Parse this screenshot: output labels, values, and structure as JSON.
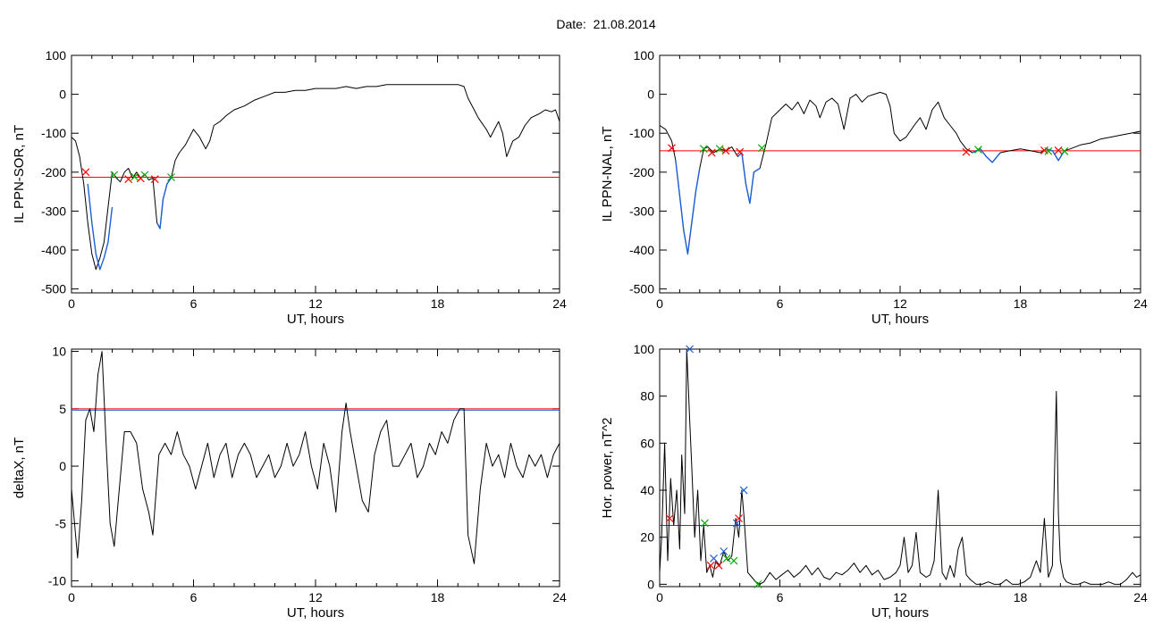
{
  "title": "Date:  21.08.2014",
  "chart_data": [
    {
      "id": "ppn-sor",
      "type": "line",
      "xlabel": "UT, hours",
      "ylabel": "IL PPN-SOR, nT",
      "xlim": [
        0,
        24
      ],
      "ylim": [
        -510,
        100
      ],
      "xticks": [
        0,
        6,
        12,
        18,
        24
      ],
      "yticks": [
        100,
        0,
        -100,
        -200,
        -300,
        -400,
        -500
      ],
      "threshold": -213,
      "threshold_color": "#ff0000",
      "series": [
        {
          "color": "#000000",
          "x": [
            0,
            0.2,
            0.4,
            0.6,
            0.8,
            1.0,
            1.2,
            1.4,
            1.6,
            1.8,
            2.0,
            2.2,
            2.4,
            2.6,
            2.8,
            3.0,
            3.2,
            3.4,
            3.6,
            3.8,
            4.0,
            4.2,
            4.35,
            4.5,
            4.7,
            4.9,
            5.1,
            5.3,
            5.6,
            6.0,
            6.3,
            6.6,
            6.8,
            7.0,
            7.3,
            7.6,
            8.0,
            8.5,
            9.0,
            9.5,
            10.0,
            10.5,
            11.0,
            11.5,
            12.0,
            12.5,
            13.0,
            13.5,
            14.0,
            14.5,
            15.0,
            15.5,
            16.0,
            16.5,
            17.0,
            17.5,
            18.0,
            18.5,
            19.0,
            19.3,
            19.5,
            19.8,
            20.0,
            20.2,
            20.4,
            20.6,
            20.8,
            21.0,
            21.2,
            21.4,
            21.7,
            22.0,
            22.3,
            22.6,
            23.0,
            23.3,
            23.6,
            23.8,
            24.0
          ],
          "y": [
            -110,
            -120,
            -160,
            -230,
            -330,
            -410,
            -450,
            -420,
            -380,
            -290,
            -200,
            -215,
            -225,
            -200,
            -190,
            -215,
            -200,
            -215,
            -205,
            -220,
            -215,
            -330,
            -345,
            -270,
            -230,
            -215,
            -170,
            -150,
            -130,
            -90,
            -110,
            -140,
            -120,
            -80,
            -70,
            -55,
            -40,
            -30,
            -15,
            -5,
            5,
            5,
            10,
            10,
            15,
            15,
            15,
            20,
            15,
            20,
            20,
            25,
            25,
            25,
            25,
            25,
            25,
            25,
            25,
            20,
            -10,
            -40,
            -60,
            -75,
            -90,
            -110,
            -90,
            -70,
            -100,
            -160,
            -120,
            -110,
            -80,
            -60,
            -50,
            -40,
            -45,
            -40,
            -70
          ]
        },
        {
          "color": "#1f5fd6",
          "x": [
            0.8,
            1.0,
            1.2,
            1.4,
            1.6,
            1.8,
            2.0
          ],
          "y": [
            -230,
            -330,
            -410,
            -450,
            -420,
            -380,
            -290
          ]
        },
        {
          "color": "#1f5fd6",
          "x": [
            4.2,
            4.35,
            4.5,
            4.7,
            4.9
          ],
          "y": [
            -330,
            -345,
            -270,
            -230,
            -215
          ]
        }
      ],
      "markers": [
        {
          "x": 0.7,
          "y": -200,
          "color": "#ff0000"
        },
        {
          "x": 2.1,
          "y": -207,
          "color": "#00b000"
        },
        {
          "x": 2.8,
          "y": -218,
          "color": "#ff0000"
        },
        {
          "x": 3.1,
          "y": -212,
          "color": "#00b000"
        },
        {
          "x": 3.4,
          "y": -216,
          "color": "#ff0000"
        },
        {
          "x": 3.6,
          "y": -207,
          "color": "#00b000"
        },
        {
          "x": 4.1,
          "y": -218,
          "color": "#ff0000"
        },
        {
          "x": 4.9,
          "y": -213,
          "color": "#00b000"
        }
      ]
    },
    {
      "id": "ppn-nal",
      "type": "line",
      "xlabel": "UT, hours",
      "ylabel": "IL PPN-NAL, nT",
      "xlim": [
        0,
        24
      ],
      "ylim": [
        -510,
        100
      ],
      "xticks": [
        0,
        6,
        12,
        18,
        24
      ],
      "yticks": [
        100,
        0,
        -100,
        -200,
        -300,
        -400,
        -500
      ],
      "threshold": -145,
      "threshold_color": "#ff0000",
      "series": [
        {
          "color": "#000000",
          "x": [
            0,
            0.3,
            0.6,
            0.8,
            1.0,
            1.2,
            1.4,
            1.6,
            1.8,
            2.0,
            2.2,
            2.4,
            2.7,
            3.0,
            3.3,
            3.6,
            3.9,
            4.1,
            4.3,
            4.5,
            4.7,
            5.0,
            5.3,
            5.6,
            6.0,
            6.3,
            6.6,
            6.9,
            7.2,
            7.5,
            7.8,
            8.0,
            8.3,
            8.6,
            8.9,
            9.2,
            9.5,
            9.8,
            10.1,
            10.4,
            10.7,
            11.0,
            11.3,
            11.5,
            11.7,
            12.0,
            12.3,
            12.7,
            13.0,
            13.3,
            13.6,
            13.9,
            14.2,
            14.5,
            14.8,
            15.0,
            15.3,
            15.6,
            16.0,
            16.3,
            16.6,
            17.0,
            17.5,
            18.0,
            18.5,
            19.0,
            19.3,
            19.6,
            19.9,
            20.2,
            20.5,
            21.0,
            21.5,
            22.0,
            22.5,
            23.0,
            23.5,
            24.0
          ],
          "y": [
            -80,
            -90,
            -120,
            -170,
            -260,
            -350,
            -410,
            -330,
            -250,
            -190,
            -140,
            -135,
            -150,
            -140,
            -145,
            -135,
            -160,
            -150,
            -230,
            -280,
            -200,
            -190,
            -130,
            -60,
            -40,
            -25,
            -40,
            -20,
            -50,
            -15,
            -30,
            -60,
            -20,
            -10,
            -25,
            -90,
            -10,
            0,
            -20,
            -5,
            0,
            5,
            0,
            -30,
            -100,
            -120,
            -110,
            -80,
            -60,
            -90,
            -40,
            -20,
            -60,
            -80,
            -100,
            -120,
            -140,
            -150,
            -140,
            -160,
            -175,
            -150,
            -145,
            -140,
            -145,
            -150,
            -140,
            -145,
            -170,
            -145,
            -140,
            -130,
            -125,
            -115,
            -110,
            -105,
            -100,
            -95
          ]
        },
        {
          "color": "#1f5fd6",
          "x": [
            0.8,
            1.0,
            1.2,
            1.4,
            1.6,
            1.8,
            2.0
          ],
          "y": [
            -170,
            -260,
            -350,
            -410,
            -330,
            -250,
            -190
          ]
        },
        {
          "color": "#1f5fd6",
          "x": [
            3.9,
            4.1,
            4.3,
            4.5,
            4.7,
            5.0
          ],
          "y": [
            -160,
            -150,
            -230,
            -280,
            -200,
            -190
          ]
        },
        {
          "color": "#1f5fd6",
          "x": [
            15.6,
            16.0,
            16.3,
            16.6,
            17.0
          ],
          "y": [
            -150,
            -140,
            -160,
            -175,
            -150
          ]
        },
        {
          "color": "#1f5fd6",
          "x": [
            19.3,
            19.6,
            19.9,
            20.2
          ],
          "y": [
            -140,
            -145,
            -170,
            -145
          ]
        }
      ],
      "markers": [
        {
          "x": 0.6,
          "y": -138,
          "color": "#ff0000"
        },
        {
          "x": 2.2,
          "y": -140,
          "color": "#00b000"
        },
        {
          "x": 2.6,
          "y": -150,
          "color": "#ff0000"
        },
        {
          "x": 3.0,
          "y": -140,
          "color": "#00b000"
        },
        {
          "x": 3.3,
          "y": -145,
          "color": "#ff0000"
        },
        {
          "x": 4.0,
          "y": -148,
          "color": "#ff0000"
        },
        {
          "x": 5.1,
          "y": -138,
          "color": "#00b000"
        },
        {
          "x": 15.3,
          "y": -148,
          "color": "#ff0000"
        },
        {
          "x": 15.9,
          "y": -142,
          "color": "#00b000"
        },
        {
          "x": 19.2,
          "y": -144,
          "color": "#ff0000"
        },
        {
          "x": 19.4,
          "y": -146,
          "color": "#00b000"
        },
        {
          "x": 19.9,
          "y": -144,
          "color": "#ff0000"
        },
        {
          "x": 20.2,
          "y": -146,
          "color": "#00b000"
        }
      ]
    },
    {
      "id": "deltax",
      "type": "line",
      "xlabel": "UT, hours",
      "ylabel": "deltaX, nT",
      "xlim": [
        0,
        24
      ],
      "ylim": [
        -10.5,
        10.2
      ],
      "xticks": [
        0,
        6,
        12,
        18,
        24
      ],
      "yticks": [
        10,
        5,
        0,
        -5,
        -10
      ],
      "threshold": 5,
      "threshold_color": "#ff0000",
      "threshold_extra_color": "#1f5fd6",
      "series": [
        {
          "color": "#000000",
          "x": [
            0,
            0.1,
            0.3,
            0.5,
            0.7,
            0.9,
            1.1,
            1.3,
            1.5,
            1.7,
            1.9,
            2.1,
            2.3,
            2.6,
            2.9,
            3.2,
            3.5,
            3.8,
            4.0,
            4.3,
            4.6,
            4.9,
            5.2,
            5.5,
            5.8,
            6.1,
            6.4,
            6.7,
            7.0,
            7.3,
            7.6,
            7.9,
            8.2,
            8.5,
            8.8,
            9.1,
            9.4,
            9.7,
            10.0,
            10.3,
            10.6,
            10.9,
            11.2,
            11.5,
            11.8,
            12.1,
            12.4,
            12.7,
            13.0,
            13.3,
            13.5,
            13.7,
            14.0,
            14.3,
            14.6,
            14.9,
            15.2,
            15.5,
            15.8,
            16.1,
            16.4,
            16.7,
            17.0,
            17.3,
            17.6,
            17.9,
            18.2,
            18.5,
            18.8,
            19.1,
            19.3,
            19.5,
            19.8,
            20.1,
            20.4,
            20.7,
            21.0,
            21.3,
            21.6,
            21.9,
            22.2,
            22.5,
            22.8,
            23.1,
            23.4,
            23.7,
            24.0
          ],
          "y": [
            -2,
            -4,
            -8,
            -3,
            4,
            5,
            3,
            8,
            10,
            2,
            -5,
            -7,
            -3,
            3,
            3,
            2,
            -2,
            -4,
            -6,
            1,
            2,
            1,
            3,
            1,
            0,
            -2,
            0,
            2,
            -1,
            1,
            2,
            -1,
            1,
            2,
            1,
            -1,
            0,
            1,
            -1,
            0,
            2,
            0,
            1,
            3,
            0,
            -2,
            2,
            0,
            -4,
            3,
            5.5,
            3,
            0,
            -3,
            -4,
            1,
            3,
            4,
            0,
            0,
            1,
            2,
            -1,
            0,
            2,
            1,
            3,
            2,
            4,
            5,
            5,
            -6,
            -8.5,
            -2,
            2,
            0,
            1,
            -1,
            2,
            0,
            -1,
            1,
            0,
            1,
            -1,
            1,
            2
          ]
        }
      ],
      "markers": []
    },
    {
      "id": "hor-power",
      "type": "line",
      "xlabel": "UT, hours",
      "ylabel": "Hor. power, nT^2",
      "xlim": [
        0,
        24
      ],
      "ylim": [
        -1,
        100
      ],
      "xticks": [
        0,
        6,
        12,
        18,
        24
      ],
      "yticks": [
        100,
        80,
        60,
        40,
        20,
        0
      ],
      "threshold": 25,
      "threshold_color": "#ff0000",
      "series": [
        {
          "color": "#000000",
          "x": [
            0,
            0.1,
            0.25,
            0.4,
            0.55,
            0.7,
            0.85,
            1.0,
            1.1,
            1.25,
            1.35,
            1.5,
            1.6,
            1.75,
            1.9,
            2.05,
            2.2,
            2.35,
            2.5,
            2.65,
            2.8,
            3.0,
            3.2,
            3.4,
            3.6,
            3.8,
            3.95,
            4.1,
            4.2,
            4.4,
            4.6,
            4.8,
            5.0,
            5.2,
            5.5,
            5.8,
            6.1,
            6.4,
            6.7,
            7.0,
            7.3,
            7.6,
            7.9,
            8.2,
            8.5,
            8.8,
            9.1,
            9.4,
            9.7,
            10.0,
            10.3,
            10.6,
            10.9,
            11.2,
            11.5,
            11.8,
            12.0,
            12.2,
            12.4,
            12.6,
            12.8,
            13.0,
            13.3,
            13.5,
            13.7,
            13.9,
            14.1,
            14.3,
            14.5,
            14.7,
            14.9,
            15.1,
            15.3,
            15.5,
            15.8,
            16.1,
            16.4,
            16.7,
            17.0,
            17.3,
            17.6,
            17.9,
            18.2,
            18.5,
            18.8,
            19.0,
            19.2,
            19.4,
            19.6,
            19.8,
            19.9,
            20.0,
            20.15,
            20.3,
            20.6,
            20.9,
            21.2,
            21.5,
            21.8,
            22.1,
            22.4,
            22.7,
            23.0,
            23.3,
            23.6,
            23.8,
            24.0
          ],
          "y": [
            5,
            20,
            60,
            10,
            45,
            25,
            40,
            15,
            55,
            30,
            100,
            70,
            50,
            20,
            40,
            10,
            25,
            5,
            8,
            3,
            10,
            8,
            14,
            10,
            12,
            28,
            20,
            40,
            30,
            5,
            3,
            1,
            0,
            1,
            5,
            2,
            4,
            6,
            3,
            5,
            8,
            4,
            7,
            3,
            2,
            5,
            4,
            6,
            9,
            5,
            8,
            4,
            6,
            2,
            3,
            5,
            8,
            20,
            5,
            8,
            22,
            5,
            3,
            4,
            10,
            40,
            5,
            2,
            8,
            3,
            15,
            20,
            4,
            2,
            0,
            0,
            1,
            0,
            0,
            2,
            0,
            0,
            1,
            3,
            10,
            5,
            28,
            3,
            8,
            82,
            30,
            10,
            3,
            1,
            0,
            0,
            1,
            0,
            0,
            0,
            1,
            0,
            0,
            2,
            5,
            3,
            4
          ]
        }
      ],
      "markers": [
        {
          "x": 0.5,
          "y": 28,
          "color": "#ff0000"
        },
        {
          "x": 1.5,
          "y": 100,
          "color": "#1f5fd6"
        },
        {
          "x": 2.25,
          "y": 26,
          "color": "#00b000"
        },
        {
          "x": 2.55,
          "y": 8,
          "color": "#ff0000"
        },
        {
          "x": 2.7,
          "y": 11,
          "color": "#1f5fd6"
        },
        {
          "x": 2.95,
          "y": 8,
          "color": "#ff0000"
        },
        {
          "x": 3.2,
          "y": 14,
          "color": "#1f5fd6"
        },
        {
          "x": 3.35,
          "y": 11,
          "color": "#00b000"
        },
        {
          "x": 3.7,
          "y": 10,
          "color": "#00b000"
        },
        {
          "x": 3.85,
          "y": 26,
          "color": "#1f5fd6"
        },
        {
          "x": 3.95,
          "y": 28,
          "color": "#ff0000"
        },
        {
          "x": 4.2,
          "y": 40,
          "color": "#1f5fd6"
        },
        {
          "x": 4.9,
          "y": 0,
          "color": "#00b000"
        }
      ]
    }
  ]
}
